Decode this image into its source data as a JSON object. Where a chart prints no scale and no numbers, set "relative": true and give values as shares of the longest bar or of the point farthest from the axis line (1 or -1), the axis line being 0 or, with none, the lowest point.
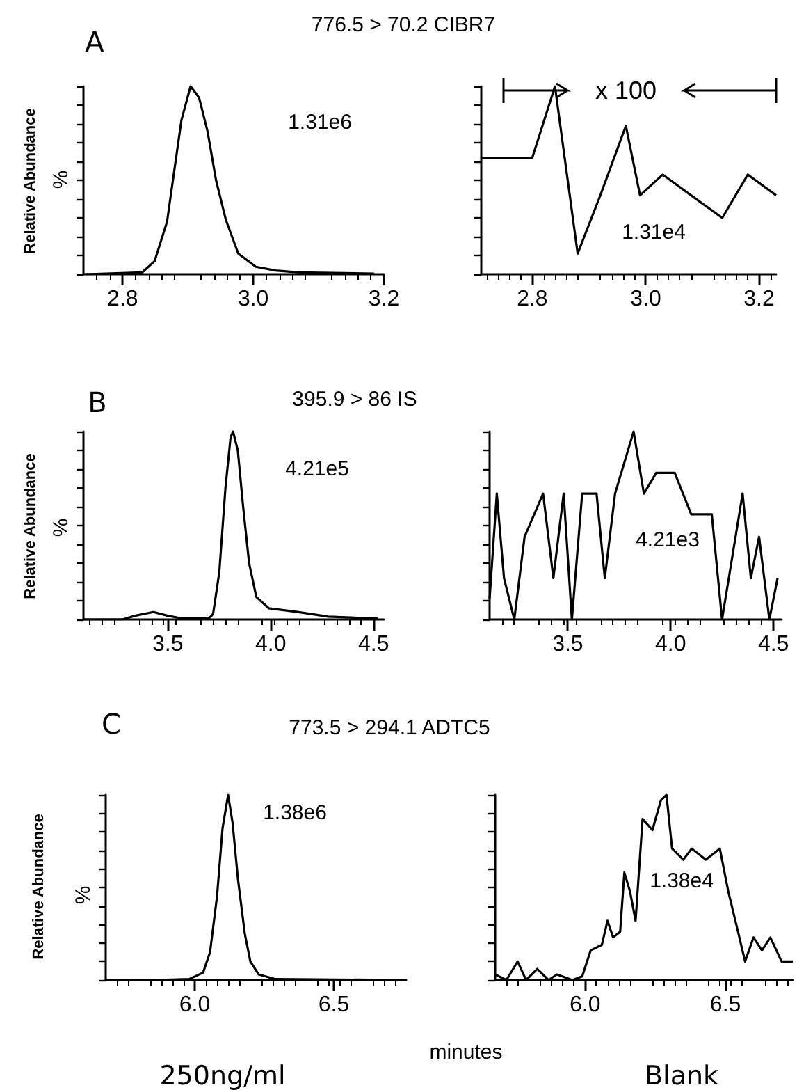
{
  "chart_data": [
    {
      "type": "line",
      "title": "776.5 > 70.2 CIBR7",
      "ylabel": "Relative Abundance",
      "annotations": [
        "A",
        "%",
        "1.31e6"
      ],
      "relative": true,
      "xlim": [
        2.74,
        3.2
      ],
      "xticks": [
        2.8,
        {
          "value": 3,
          "label": "3.0"
        },
        3.2
      ],
      "grid": false,
      "marker": "none",
      "line_style": "solid",
      "series": [
        {
          "color": "#000000",
          "x": [
            2.743,
            2.83,
            2.849,
            2.868,
            2.89,
            2.904,
            2.917,
            2.93,
            2.943,
            2.958,
            2.977,
            3.004,
            3.034,
            3.07,
            3.185
          ],
          "values": [
            0,
            0.01,
            0.07,
            0.28,
            0.82,
            1,
            0.94,
            0.76,
            0.5,
            0.29,
            0.11,
            0.04,
            0.02,
            0.01,
            0.003
          ]
        }
      ]
    },
    {
      "type": "line",
      "annotations": [
        "x 100",
        "1.31e4"
      ],
      "relative": true,
      "xlim": [
        2.71,
        3.23
      ],
      "xticks": [
        2.8,
        {
          "value": 3,
          "label": "3.0"
        },
        3.2
      ],
      "grid": false,
      "marker": "none",
      "line_style": "solid",
      "series": [
        {
          "color": "#000000",
          "x": [
            2.71,
            2.8,
            2.84,
            2.88,
            2.92,
            2.965,
            2.99,
            3.03,
            3.08,
            3.135,
            3.18,
            3.23
          ],
          "values": [
            0.62,
            0.62,
            1,
            0.11,
            0.42,
            0.79,
            0.42,
            0.53,
            0.42,
            0.3,
            0.53,
            0.42
          ]
        }
      ]
    },
    {
      "type": "line",
      "title": "395.9 > 86 IS",
      "ylabel": "Relative Abundance",
      "annotations": [
        "B",
        "%",
        "4.21e5"
      ],
      "relative": true,
      "xlim": [
        3.09,
        4.55
      ],
      "xticks": [
        3.5,
        {
          "value": 4,
          "label": "4.0"
        },
        4.5
      ],
      "grid": false,
      "marker": "none",
      "line_style": "solid",
      "series": [
        {
          "color": "#000000",
          "x": [
            3.09,
            3.28,
            3.34,
            3.43,
            3.5,
            3.57,
            3.7,
            3.72,
            3.75,
            3.78,
            3.805,
            3.817,
            3.84,
            3.866,
            3.895,
            3.93,
            3.99,
            4.13,
            4.28,
            4.52
          ],
          "values": [
            0,
            0,
            0.02,
            0.04,
            0.02,
            0.005,
            0.005,
            0.03,
            0.25,
            0.7,
            0.97,
            1,
            0.9,
            0.6,
            0.3,
            0.12,
            0.06,
            0.04,
            0.015,
            0.005
          ]
        }
      ]
    },
    {
      "type": "line",
      "annotations": [
        "4.21e3"
      ],
      "relative": true,
      "xlim": [
        3.12,
        4.54
      ],
      "xticks": [
        3.5,
        {
          "value": 4,
          "label": "4.0"
        },
        4.5
      ],
      "grid": false,
      "marker": "none",
      "line_style": "solid",
      "series": [
        {
          "color": "#000000",
          "x": [
            3.12,
            3.155,
            3.19,
            3.24,
            3.29,
            3.38,
            3.43,
            3.48,
            3.52,
            3.57,
            3.64,
            3.68,
            3.73,
            3.82,
            3.87,
            3.93,
            4.02,
            4.1,
            4.2,
            4.25,
            4.35,
            4.39,
            4.43,
            4.48,
            4.52
          ],
          "values": [
            0.11,
            0.67,
            0.22,
            0,
            0.44,
            0.67,
            0.22,
            0.67,
            0,
            0.67,
            0.67,
            0.22,
            0.67,
            1,
            0.67,
            0.78,
            0.78,
            0.56,
            0.56,
            0,
            0.67,
            0.22,
            0.44,
            0,
            0.22
          ]
        }
      ]
    },
    {
      "type": "line",
      "title": "773.5 > 294.1 ADTC5",
      "ylabel": "Relative Abundance",
      "xlabel": "minutes",
      "annotations": [
        "C",
        "%",
        "1.38e6",
        "250ng/ml"
      ],
      "relative": true,
      "xlim": [
        5.68,
        6.76
      ],
      "xticks": [
        {
          "value": 6,
          "label": "6.0"
        },
        6.5
      ],
      "grid": false,
      "marker": "none",
      "line_style": "solid",
      "series": [
        {
          "color": "#000000",
          "x": [
            5.68,
            5.85,
            5.98,
            6.03,
            6.055,
            6.08,
            6.1,
            6.12,
            6.136,
            6.155,
            6.18,
            6.2,
            6.23,
            6.29,
            6.76
          ],
          "values": [
            0,
            0,
            0.005,
            0.04,
            0.15,
            0.45,
            0.82,
            1,
            0.85,
            0.55,
            0.25,
            0.1,
            0.03,
            0.005,
            0
          ]
        }
      ]
    },
    {
      "type": "line",
      "annotations": [
        "1.38e4",
        "Blank"
      ],
      "relative": true,
      "xlim": [
        5.68,
        6.74
      ],
      "xticks": [
        {
          "value": 6,
          "label": "6.0"
        },
        6.5
      ],
      "grid": false,
      "marker": "none",
      "line_style": "solid",
      "series": [
        {
          "color": "#000000",
          "x": [
            5.68,
            5.72,
            5.76,
            5.79,
            5.83,
            5.87,
            5.9,
            5.955,
            5.99,
            6.02,
            6.06,
            6.08,
            6.1,
            6.125,
            6.14,
            6.16,
            6.18,
            6.205,
            6.24,
            6.27,
            6.29,
            6.31,
            6.35,
            6.38,
            6.43,
            6.48,
            6.51,
            6.545,
            6.57,
            6.6,
            6.63,
            6.66,
            6.7,
            6.74
          ],
          "values": [
            0.03,
            0,
            0.1,
            0,
            0.06,
            0,
            0.03,
            0,
            0.02,
            0.16,
            0.19,
            0.32,
            0.23,
            0.26,
            0.58,
            0.48,
            0.32,
            0.87,
            0.81,
            0.97,
            1,
            0.71,
            0.65,
            0.71,
            0.65,
            0.71,
            0.48,
            0.26,
            0.1,
            0.23,
            0.16,
            0.23,
            0.1,
            0.1
          ]
        }
      ]
    }
  ]
}
